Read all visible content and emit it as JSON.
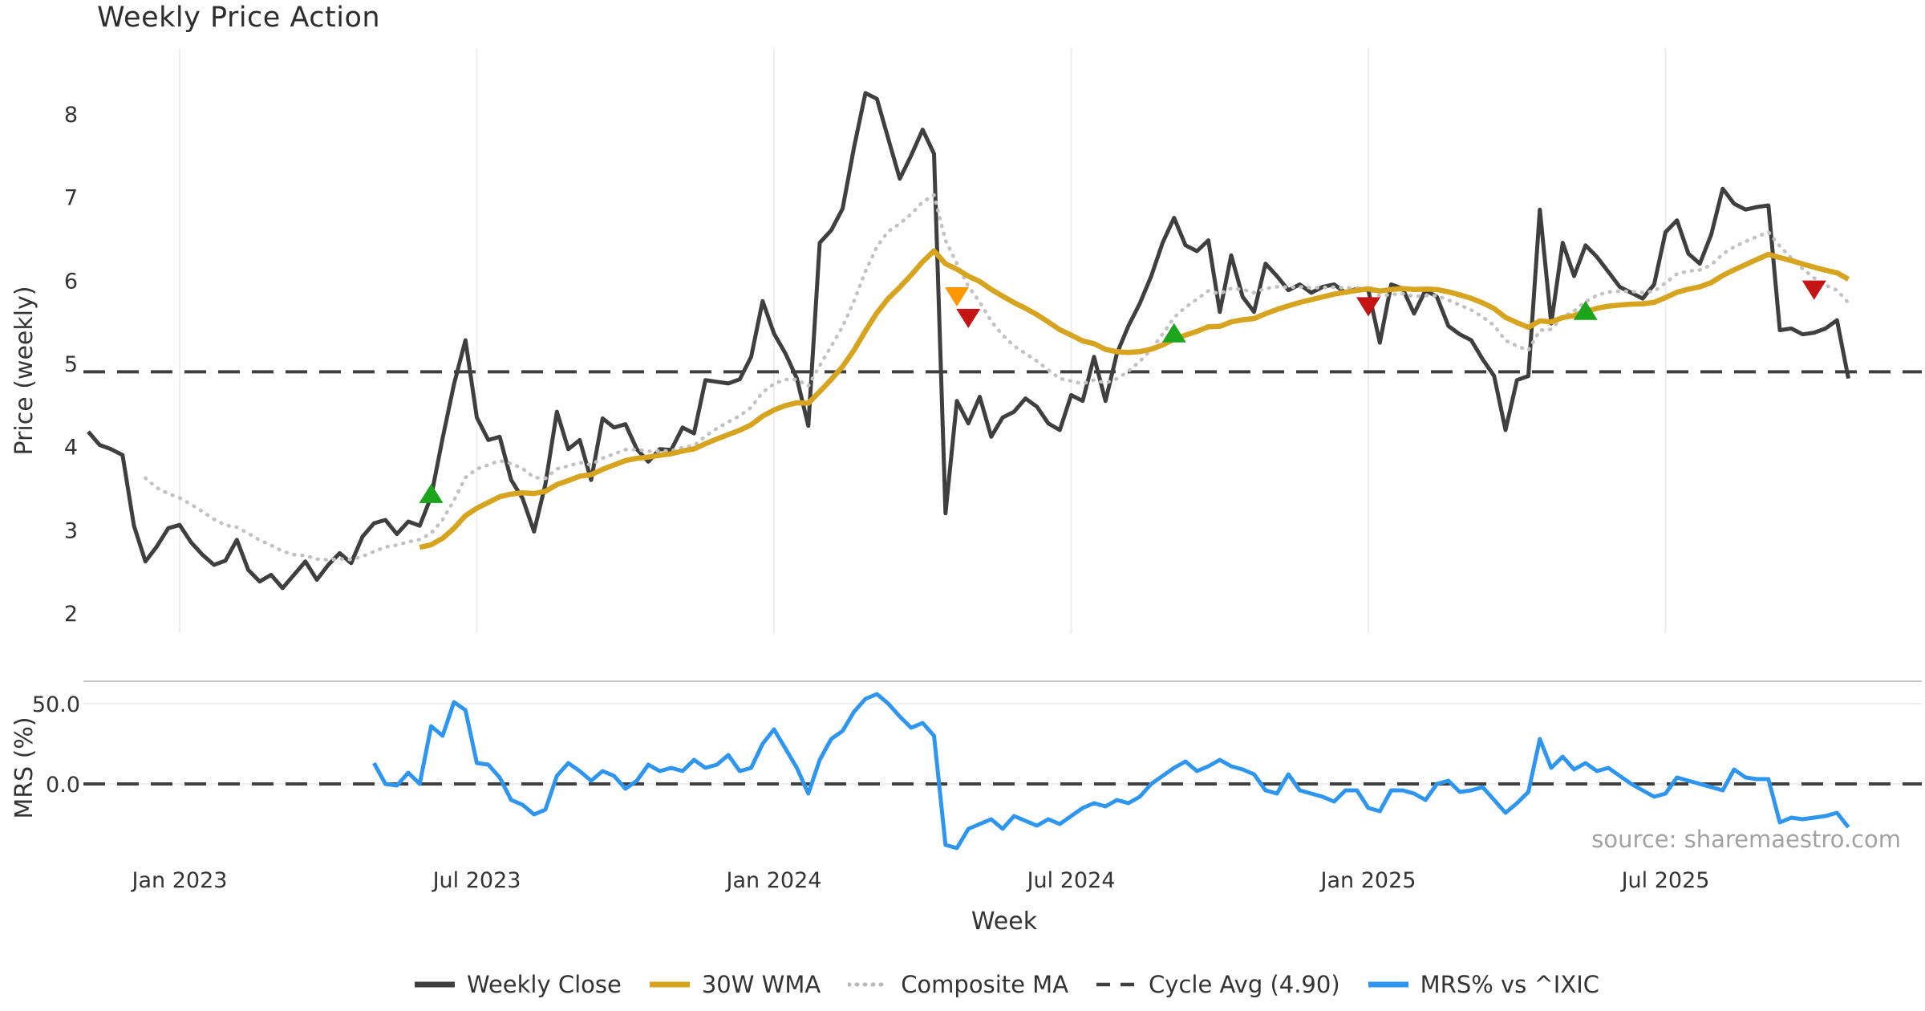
{
  "title": "Weekly Price Action",
  "source": "source: sharemaestro.com",
  "axes": {
    "price_label": "Price (weekly)",
    "mrs_label": "MRS (%)",
    "week_label": "Week",
    "price_ticks": [
      2,
      3,
      4,
      5,
      6,
      7,
      8
    ],
    "mrs_ticks": [
      {
        "value": 50,
        "label": "50.0"
      },
      {
        "value": 0,
        "label": "0.0"
      }
    ],
    "x_ticks": [
      {
        "week": 8,
        "label": "Jan 2023"
      },
      {
        "week": 34,
        "label": "Jul 2023"
      },
      {
        "week": 60,
        "label": "Jan 2024"
      },
      {
        "week": 86,
        "label": "Jul 2024"
      },
      {
        "week": 112,
        "label": "Jan 2025"
      },
      {
        "week": 138,
        "label": "Jul 2025"
      }
    ]
  },
  "legend": [
    {
      "label": "Weekly Close",
      "color": "#3f3f3f",
      "style": "solid"
    },
    {
      "label": "30W WMA",
      "color": "#d6a41f",
      "style": "solid"
    },
    {
      "label": "Composite MA",
      "color": "#b8b8b8",
      "style": "dotted"
    },
    {
      "label": "Cycle Avg (4.90)",
      "color": "#3f3f3f",
      "style": "dashed"
    },
    {
      "label": "MRS% vs ^IXIC",
      "color": "#2e96f0",
      "style": "solid"
    }
  ],
  "colors": {
    "weekly_close": "#3f3f3f",
    "wma": "#d6a41f",
    "composite": "#c2c2c2",
    "cycle_avg": "#3f3f3f",
    "mrs": "#2e96f0",
    "buy_marker": "#1ca41c",
    "warn_marker": "#ff9800",
    "sell_marker": "#c41414",
    "grid": "#ebedf0",
    "panel_separator": "#c8c8c8",
    "hgrid_light": "#efefef"
  },
  "chart_data": {
    "type": "line",
    "title": "Weekly Price Action",
    "xlabel": "Week",
    "x_unit": "week_index",
    "x_count": 155,
    "x_tick_weeks": [
      8,
      34,
      60,
      86,
      112,
      138
    ],
    "x_tick_labels": [
      "Jan 2023",
      "Jul 2023",
      "Jan 2024",
      "Jul 2024",
      "Jan 2025",
      "Jul 2025"
    ],
    "panels": [
      {
        "name": "price",
        "ylabel": "Price (weekly)",
        "ylim": [
          1.75,
          8.8
        ],
        "grid": "vertical",
        "series": [
          {
            "name": "Weekly Close",
            "style": "solid",
            "color": "#3f3f3f",
            "start_week": 0,
            "values": [
              4.18,
              4.02,
              3.97,
              3.9,
              3.05,
              2.62,
              2.8,
              3.02,
              3.06,
              2.85,
              2.7,
              2.58,
              2.63,
              2.88,
              2.52,
              2.38,
              2.46,
              2.3,
              2.46,
              2.62,
              2.4,
              2.58,
              2.72,
              2.6,
              2.92,
              3.08,
              3.12,
              2.95,
              3.1,
              3.05,
              3.4,
              4.1,
              4.75,
              5.28,
              4.35,
              4.08,
              4.12,
              3.6,
              3.38,
              2.98,
              3.55,
              4.42,
              3.97,
              4.08,
              3.6,
              4.34,
              4.23,
              4.27,
              3.97,
              3.82,
              3.97,
              3.96,
              4.23,
              4.16,
              4.8,
              4.78,
              4.76,
              4.81,
              5.08,
              5.75,
              5.36,
              5.12,
              4.82,
              4.25,
              6.45,
              6.6,
              6.86,
              7.6,
              8.25,
              8.18,
              7.7,
              7.22,
              7.5,
              7.81,
              7.52,
              3.2,
              4.55,
              4.28,
              4.6,
              4.12,
              4.35,
              4.42,
              4.58,
              4.48,
              4.28,
              4.2,
              4.62,
              4.55,
              5.08,
              4.55,
              5.12,
              5.45,
              5.72,
              6.05,
              6.45,
              6.75,
              6.42,
              6.35,
              6.48,
              5.62,
              6.3,
              5.8,
              5.62,
              6.2,
              6.05,
              5.88,
              5.95,
              5.85,
              5.92,
              5.95,
              5.85,
              5.9,
              5.88,
              5.25,
              5.95,
              5.9,
              5.6,
              5.88,
              5.8,
              5.45,
              5.35,
              5.28,
              5.05,
              4.85,
              4.2,
              4.8,
              4.85,
              6.85,
              5.48,
              6.45,
              6.05,
              6.42,
              6.28,
              6.1,
              5.92,
              5.85,
              5.78,
              5.95,
              6.58,
              6.72,
              6.32,
              6.2,
              6.55,
              7.1,
              6.92,
              6.85,
              6.88,
              6.9,
              5.4,
              5.42,
              5.35,
              5.37,
              5.42,
              5.52,
              4.82
            ]
          },
          {
            "name": "30W WMA",
            "style": "solid",
            "color": "#d6a41f",
            "derived": "weighted_moving_average",
            "window": 30,
            "of": "Weekly Close"
          },
          {
            "name": "Composite MA",
            "style": "dotted",
            "color": "#c2c2c2",
            "derived": "ema",
            "span": 13,
            "seed_window": 6,
            "of": "Weekly Close"
          },
          {
            "name": "Cycle Avg",
            "style": "dashed",
            "color": "#3f3f3f",
            "constant": 4.9
          }
        ],
        "markers": [
          {
            "week": 30,
            "value": 3.42,
            "direction": "up",
            "signal": "buy",
            "color": "#1ca41c"
          },
          {
            "week": 76,
            "value": 5.82,
            "direction": "down",
            "signal": "warn",
            "color": "#ff9800"
          },
          {
            "week": 77,
            "value": 5.56,
            "direction": "down",
            "signal": "sell",
            "color": "#c41414"
          },
          {
            "week": 95,
            "value": 5.35,
            "direction": "up",
            "signal": "buy",
            "color": "#1ca41c"
          },
          {
            "week": 112,
            "value": 5.7,
            "direction": "down",
            "signal": "sell",
            "color": "#c41414"
          },
          {
            "week": 131,
            "value": 5.62,
            "direction": "up",
            "signal": "buy",
            "color": "#1ca41c"
          },
          {
            "week": 151,
            "value": 5.9,
            "direction": "down",
            "signal": "sell",
            "color": "#c41414"
          }
        ]
      },
      {
        "name": "mrs",
        "ylabel": "MRS (%)",
        "ylim": [
          -46,
          64
        ],
        "zero_line": 0,
        "series": [
          {
            "name": "MRS% vs ^IXIC",
            "style": "solid",
            "color": "#2e96f0",
            "start_week": 25,
            "values": [
              13,
              0,
              -1,
              7,
              0,
              36,
              30,
              51,
              46,
              13,
              12,
              4,
              -10,
              -13,
              -19,
              -16,
              5,
              13,
              8,
              2,
              8,
              5,
              -3,
              2,
              12,
              8,
              10,
              8,
              15,
              10,
              12,
              18,
              8,
              10,
              25,
              34,
              22,
              10,
              -6,
              15,
              28,
              33,
              45,
              53,
              56,
              50,
              42,
              35,
              38,
              30,
              -38,
              -40,
              -28,
              -25,
              -22,
              -28,
              -20,
              -23,
              -26,
              -22,
              -25,
              -20,
              -15,
              -12,
              -14,
              -10,
              -12,
              -8,
              0,
              5,
              10,
              14,
              8,
              11,
              15,
              11,
              9,
              6,
              -4,
              -6,
              6,
              -4,
              -6,
              -8,
              -11,
              -4,
              -4,
              -15,
              -17,
              -4,
              -4,
              -6,
              -10,
              0,
              2,
              -5,
              -4,
              -2,
              -10,
              -18,
              -12,
              -5,
              28,
              10,
              17,
              9,
              13,
              8,
              10,
              5,
              0,
              -4,
              -8,
              -6,
              4,
              2,
              0,
              -2,
              -4,
              9,
              4,
              3,
              3,
              -24,
              -21,
              -22,
              -21,
              -20,
              -18,
              -27
            ]
          }
        ]
      }
    ],
    "legend_position": "bottom"
  }
}
